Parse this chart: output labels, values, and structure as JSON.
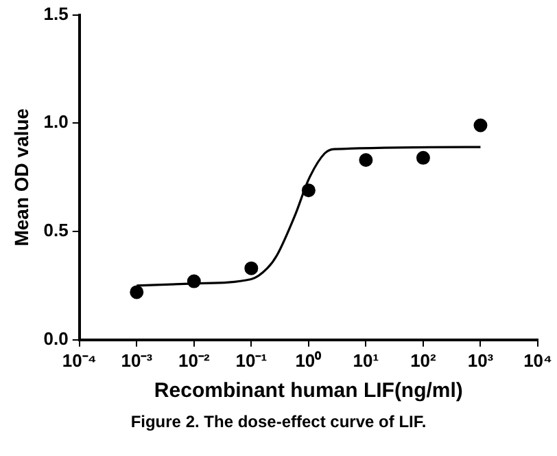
{
  "chart_data": {
    "type": "scatter",
    "xlabel": "Recombinant human LIF(ng/ml)",
    "ylabel": "Mean OD value",
    "log": "x",
    "grid": false,
    "legend": false,
    "marker": "circle",
    "xlim": [
      0.0001,
      10000
    ],
    "xticks": [
      {
        "value": 0.0001,
        "label": "10⁻⁴"
      },
      {
        "value": 0.001,
        "label": "10⁻³"
      },
      {
        "value": 0.01,
        "label": "10⁻²"
      },
      {
        "value": 0.1,
        "label": "10⁻¹"
      },
      {
        "value": 1,
        "label": "10⁰"
      },
      {
        "value": 10,
        "label": "10¹"
      },
      {
        "value": 100,
        "label": "10²"
      },
      {
        "value": 1000,
        "label": "10³"
      },
      {
        "value": 10000,
        "label": "10⁴"
      }
    ],
    "ylim": [
      0,
      1.5
    ],
    "yticks": [
      {
        "value": 0,
        "label": "0.0"
      },
      0.5,
      {
        "value": 1,
        "label": "1.0"
      },
      1.5
    ],
    "series": [
      {
        "color": "#000000",
        "x": [
          0.001,
          0.01,
          0.1,
          1,
          10,
          100,
          1000
        ],
        "values": [
          0.22,
          0.27,
          0.33,
          0.69,
          0.83,
          0.84,
          0.99
        ]
      },
      {
        "type": "line",
        "color": "#000000",
        "marker": "none",
        "line_style": "solid",
        "x": [
          0.001,
          0.01,
          0.1,
          0.19,
          0.28,
          0.59,
          1,
          1.9,
          2.8,
          1000
        ],
        "values": [
          0.25,
          0.26,
          0.28,
          0.33,
          0.39,
          0.58,
          0.74,
          0.86,
          0.88,
          0.89
        ]
      }
    ],
    "annotations": [
      "Figure 2. The dose-effect curve of LIF."
    ]
  }
}
